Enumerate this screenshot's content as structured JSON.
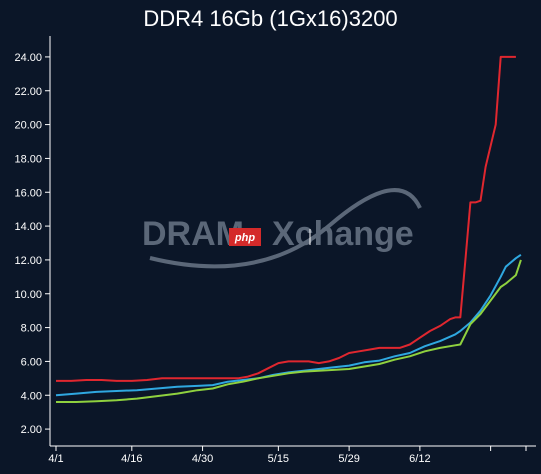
{
  "chart_data": {
    "type": "line",
    "title": "DDR4 16Gb (1Gx16)3200",
    "xlabel": "",
    "ylabel": "",
    "x_ticks": [
      "4/1",
      "4/16",
      "4/30",
      "5/15",
      "5/29",
      "6/12"
    ],
    "y_ticks": [
      "2.00",
      "4.00",
      "6.00",
      "8.00",
      "10.00",
      "12.00",
      "14.00",
      "16.00",
      "18.00",
      "20.00",
      "22.00",
      "24.00"
    ],
    "ylim": [
      1,
      25
    ],
    "xlim": [
      0,
      93
    ],
    "grid": false,
    "legend": "none",
    "series": [
      {
        "color": "#e0272f",
        "points": [
          [
            0,
            4.85
          ],
          [
            3,
            4.85
          ],
          [
            6,
            4.9
          ],
          [
            9,
            4.9
          ],
          [
            12,
            4.85
          ],
          [
            15,
            4.85
          ],
          [
            18,
            4.9
          ],
          [
            21,
            5.0
          ],
          [
            24,
            5.0
          ],
          [
            27,
            5.0
          ],
          [
            30,
            5.0
          ],
          [
            33,
            5.0
          ],
          [
            36,
            5.0
          ],
          [
            38,
            5.1
          ],
          [
            40,
            5.3
          ],
          [
            42,
            5.6
          ],
          [
            44,
            5.9
          ],
          [
            46,
            6.0
          ],
          [
            48,
            6.0
          ],
          [
            50,
            6.0
          ],
          [
            52,
            5.9
          ],
          [
            54,
            6.0
          ],
          [
            56,
            6.2
          ],
          [
            58,
            6.5
          ],
          [
            60,
            6.6
          ],
          [
            62,
            6.7
          ],
          [
            64,
            6.8
          ],
          [
            66,
            6.8
          ],
          [
            68,
            6.8
          ],
          [
            70,
            7.0
          ],
          [
            72,
            7.4
          ],
          [
            74,
            7.8
          ],
          [
            76,
            8.1
          ],
          [
            78,
            8.5
          ],
          [
            79,
            8.6
          ],
          [
            80,
            8.6
          ],
          [
            81,
            12.0
          ],
          [
            82,
            15.4
          ],
          [
            83,
            15.4
          ],
          [
            84,
            15.5
          ],
          [
            85,
            17.5
          ],
          [
            87,
            20.0
          ],
          [
            88,
            24.0
          ],
          [
            90,
            24.0
          ],
          [
            91,
            24.0
          ]
        ]
      },
      {
        "color": "#2fa8e0",
        "points": [
          [
            0,
            4.0
          ],
          [
            4,
            4.1
          ],
          [
            8,
            4.2
          ],
          [
            12,
            4.25
          ],
          [
            16,
            4.3
          ],
          [
            20,
            4.4
          ],
          [
            24,
            4.5
          ],
          [
            28,
            4.55
          ],
          [
            31,
            4.6
          ],
          [
            34,
            4.8
          ],
          [
            37,
            4.9
          ],
          [
            40,
            5.0
          ],
          [
            43,
            5.2
          ],
          [
            46,
            5.35
          ],
          [
            49,
            5.45
          ],
          [
            52,
            5.55
          ],
          [
            55,
            5.65
          ],
          [
            58,
            5.75
          ],
          [
            61,
            5.95
          ],
          [
            64,
            6.05
          ],
          [
            67,
            6.3
          ],
          [
            70,
            6.5
          ],
          [
            73,
            6.9
          ],
          [
            76,
            7.2
          ],
          [
            79,
            7.6
          ],
          [
            80,
            7.8
          ],
          [
            82,
            8.3
          ],
          [
            84,
            9.0
          ],
          [
            86,
            9.9
          ],
          [
            88,
            11.0
          ],
          [
            89,
            11.6
          ],
          [
            91,
            12.1
          ],
          [
            92,
            12.3
          ]
        ]
      },
      {
        "color": "#8fd13f",
        "points": [
          [
            0,
            3.6
          ],
          [
            4,
            3.6
          ],
          [
            8,
            3.65
          ],
          [
            12,
            3.7
          ],
          [
            16,
            3.8
          ],
          [
            20,
            3.95
          ],
          [
            24,
            4.1
          ],
          [
            28,
            4.3
          ],
          [
            31,
            4.4
          ],
          [
            34,
            4.65
          ],
          [
            37,
            4.8
          ],
          [
            40,
            5.0
          ],
          [
            43,
            5.15
          ],
          [
            46,
            5.3
          ],
          [
            49,
            5.4
          ],
          [
            52,
            5.45
          ],
          [
            55,
            5.5
          ],
          [
            58,
            5.55
          ],
          [
            61,
            5.7
          ],
          [
            64,
            5.85
          ],
          [
            67,
            6.1
          ],
          [
            70,
            6.3
          ],
          [
            73,
            6.6
          ],
          [
            76,
            6.8
          ],
          [
            79,
            6.95
          ],
          [
            80,
            7.0
          ],
          [
            82,
            8.2
          ],
          [
            84,
            8.8
          ],
          [
            86,
            9.6
          ],
          [
            88,
            10.4
          ],
          [
            89,
            10.6
          ],
          [
            91,
            11.1
          ],
          [
            92,
            12.0
          ]
        ]
      }
    ]
  },
  "watermark": {
    "text_left": "DRAM",
    "text_right": "Xchange",
    "badge": "php"
  }
}
